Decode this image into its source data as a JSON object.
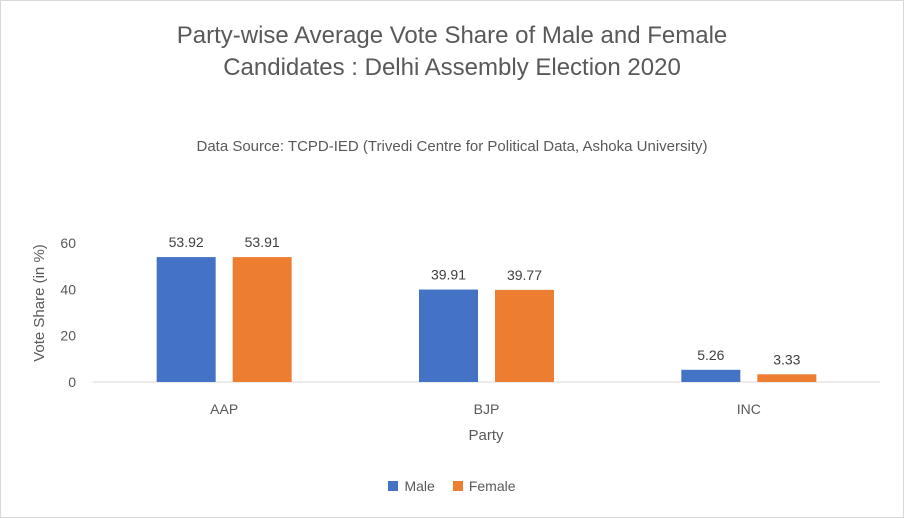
{
  "chart_data": {
    "type": "bar",
    "title_lines": [
      "Party-wise Average Vote Share of Male and Female",
      "Candidates : Delhi Assembly Election 2020"
    ],
    "subtitle": "Data Source: TCPD-IED (Trivedi Centre for Political Data, Ashoka University)",
    "xlabel": "Party",
    "ylabel": "Vote Share (in %)",
    "categories": [
      "AAP",
      "BJP",
      "INC"
    ],
    "series": [
      {
        "name": "Male",
        "color": "#4472c4",
        "values": [
          53.92,
          39.91,
          5.26
        ]
      },
      {
        "name": "Female",
        "color": "#ed7d31",
        "values": [
          53.91,
          39.77,
          3.33
        ]
      }
    ],
    "ylim": [
      0,
      60
    ],
    "yticks": [
      0,
      20,
      40,
      60
    ],
    "grid": false,
    "legend_position": "bottom"
  }
}
